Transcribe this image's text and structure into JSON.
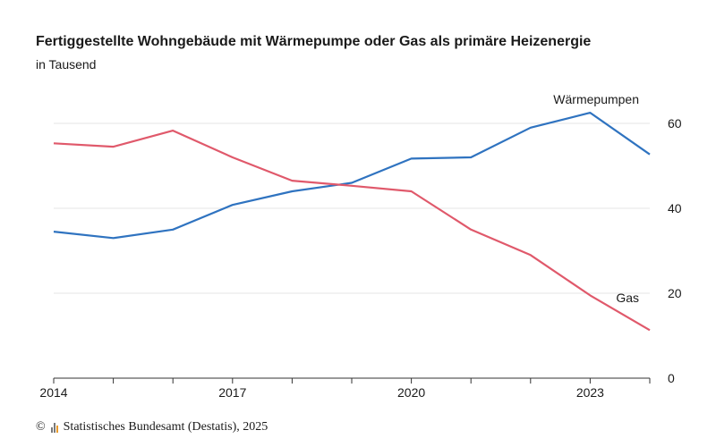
{
  "chart_data": {
    "type": "line",
    "title": "Fertiggestellte Wohngebäude mit Wärmepumpe oder Gas als primäre Heizenergie",
    "subtitle": "in Tausend",
    "x": [
      2014,
      2015,
      2016,
      2017,
      2018,
      2019,
      2020,
      2021,
      2022,
      2023,
      2024
    ],
    "x_tick_labels": [
      "2014",
      "2017",
      "2020",
      "2023"
    ],
    "y_tick_labels": [
      "0",
      "20",
      "40",
      "60"
    ],
    "ylim": [
      0,
      68
    ],
    "grid": true,
    "series": [
      {
        "name": "Wärmepumpen",
        "color": "#2f73c0",
        "values": [
          34.5,
          33.0,
          35.0,
          40.8,
          44.0,
          46.0,
          51.7,
          52.0,
          59.0,
          62.5,
          52.7
        ]
      },
      {
        "name": "Gas",
        "color": "#e0596b",
        "values": [
          55.3,
          54.5,
          58.3,
          52.0,
          46.5,
          45.3,
          44.0,
          35.0,
          29.0,
          19.5,
          11.3
        ]
      }
    ]
  },
  "footer": {
    "copyright": "©",
    "source": "Statistisches Bundesamt (Destatis), 2025"
  }
}
